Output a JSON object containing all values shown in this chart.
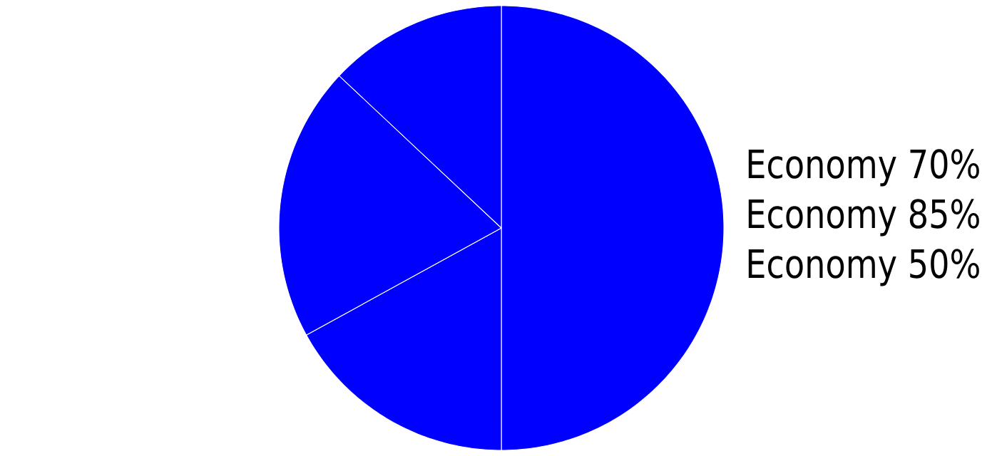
{
  "chart_data": {
    "type": "pie",
    "categories": [
      null,
      null,
      null,
      null
    ],
    "values": [
      50,
      17,
      20,
      13
    ],
    "colors": [
      "#0000ff",
      "#0000ff",
      "#0000ff",
      "#0000ff"
    ],
    "annotations": [
      "Economy 70%",
      "Economy 85%",
      "Economy 50%"
    ]
  }
}
